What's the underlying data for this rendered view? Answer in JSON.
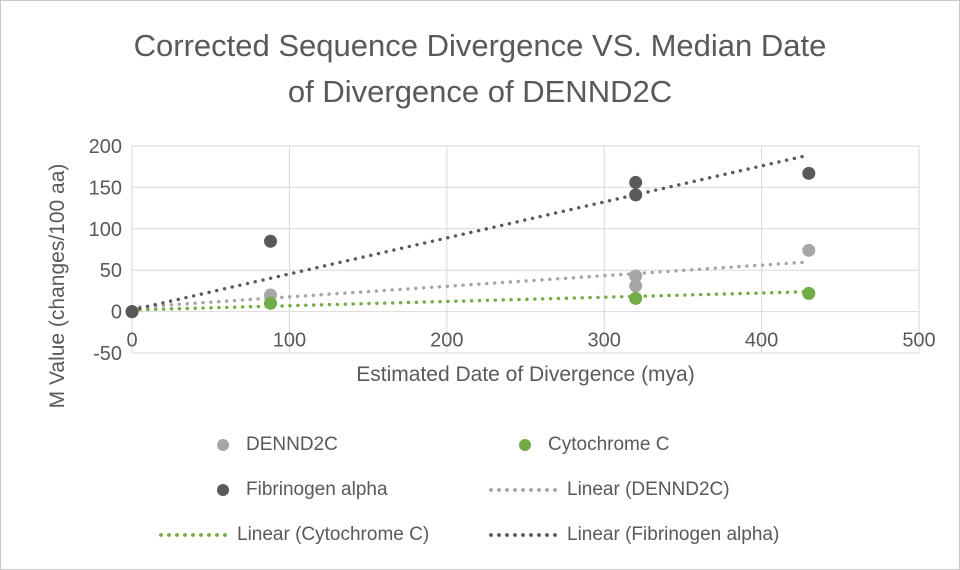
{
  "title": "Corrected Sequence Divergence VS. Median Date\nof Divergence of DENND2C",
  "chart_data": {
    "type": "scatter",
    "title": "Corrected Sequence Divergence VS. Median Date of Divergence of DENND2C",
    "xlabel": "Estimated Date of Divergence (mya)",
    "ylabel": "M Value (changes/100 aa)",
    "xlim": [
      0,
      500
    ],
    "ylim": [
      -50,
      200
    ],
    "xticks": [
      0,
      100,
      200,
      300,
      400,
      500
    ],
    "yticks": [
      -50,
      0,
      50,
      100,
      150,
      200
    ],
    "grid": true,
    "legend_position": "bottom",
    "colors": {
      "grid": "#d9d9d9",
      "axis_text": "#595959",
      "dennd2c": "#a6a6a6",
      "cytochrome_c": "#70ad47",
      "fibrinogen_alpha": "#595959"
    },
    "series": [
      {
        "name": "DENND2C",
        "kind": "scatter",
        "color": "#a6a6a6",
        "points": [
          [
            0,
            0
          ],
          [
            88,
            20
          ],
          [
            320,
            31
          ],
          [
            320,
            43
          ],
          [
            430,
            74
          ]
        ]
      },
      {
        "name": "Cytochrome C",
        "kind": "scatter",
        "color": "#70ad47",
        "points": [
          [
            0,
            0
          ],
          [
            88,
            10
          ],
          [
            320,
            16
          ],
          [
            430,
            22
          ]
        ]
      },
      {
        "name": "Fibrinogen alpha",
        "kind": "scatter",
        "color": "#595959",
        "points": [
          [
            0,
            0
          ],
          [
            88,
            85
          ],
          [
            320,
            141
          ],
          [
            320,
            156
          ],
          [
            430,
            167
          ]
        ]
      },
      {
        "name": "Linear (DENND2C)",
        "kind": "trendline",
        "color": "#a6a6a6",
        "start": [
          0,
          5
        ],
        "end": [
          430,
          60
        ]
      },
      {
        "name": "Linear (Cytochrome C)",
        "kind": "trendline",
        "color": "#70ad47",
        "start": [
          0,
          2
        ],
        "end": [
          430,
          24
        ]
      },
      {
        "name": "Linear (Fibrinogen alpha)",
        "kind": "trendline",
        "color": "#595959",
        "start": [
          0,
          2
        ],
        "end": [
          430,
          189
        ]
      }
    ],
    "legend": [
      {
        "label": "DENND2C",
        "marker": "dot",
        "color": "#a6a6a6"
      },
      {
        "label": "Cytochrome C",
        "marker": "dot",
        "color": "#70ad47"
      },
      {
        "label": "Fibrinogen alpha",
        "marker": "dot",
        "color": "#595959"
      },
      {
        "label": "Linear (DENND2C)",
        "marker": "dash",
        "color": "#a6a6a6"
      },
      {
        "label": "Linear (Cytochrome C)",
        "marker": "dash",
        "color": "#70ad47"
      },
      {
        "label": "Linear (Fibrinogen alpha)",
        "marker": "dash",
        "color": "#595959"
      }
    ]
  }
}
